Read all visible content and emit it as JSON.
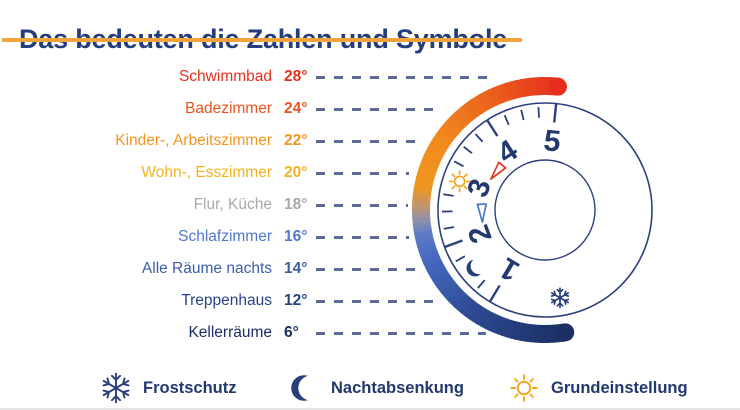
{
  "title": "Das bedeuten die Zahlen und Symbole",
  "theme": {
    "navy_text": "#22386e",
    "title_navy": "#243e7d",
    "underline_orange": "#f2a33a",
    "dash_color": "#5b6b94",
    "dial_stroke": "#2b3f7d",
    "sun_orange": "#f7a31f",
    "pointer_red": "#e8331d",
    "pointer_blue": "#4b76ca"
  },
  "rows": [
    {
      "label": "Schwimmbad",
      "temp": "28°",
      "color": "#e6301d"
    },
    {
      "label": "Badezimmer",
      "temp": "24°",
      "color": "#ea5420"
    },
    {
      "label": "Kinder-, Arbeitszimmer",
      "temp": "22°",
      "color": "#f7941e"
    },
    {
      "label": "Wohn-, Esszimmer",
      "temp": "20°",
      "color": "#f3b31c"
    },
    {
      "label": "Flur, Küche",
      "temp": "18°",
      "color": "#a6a8ab"
    },
    {
      "label": "Schlafzimmer",
      "temp": "16°",
      "color": "#4f77c8"
    },
    {
      "label": "Alle Räume nachts",
      "temp": "14°",
      "color": "#3a5dac"
    },
    {
      "label": "Treppenhaus",
      "temp": "12°",
      "color": "#29408a"
    },
    {
      "label": "Kellerräume",
      "temp": "6°",
      "color": "#1b2c62"
    }
  ],
  "dial": {
    "numbers": [
      {
        "label": "5",
        "deg": 84
      },
      {
        "label": "4",
        "deg": 122.75
      },
      {
        "label": "3",
        "deg": 161.5
      },
      {
        "label": "2",
        "deg": 200.25
      },
      {
        "label": "1",
        "deg": 239
      }
    ],
    "symbols": [
      {
        "name": "sun",
        "deg": 161.5,
        "r": 90
      },
      {
        "name": "moon",
        "deg": 219.6,
        "r": 91
      },
      {
        "name": "snowflake",
        "deg": 279.7,
        "r": 89
      }
    ],
    "pointers": [
      {
        "name": "red-pointer",
        "color": "#e8331d",
        "deg": 141,
        "r": 61.5
      },
      {
        "name": "blue-pointer",
        "color": "#4b76ca",
        "deg": 182,
        "r": 63
      }
    ],
    "arc_stops": [
      [
        0.0,
        "#e62e1f"
      ],
      [
        0.14,
        "#e95a1d"
      ],
      [
        0.32,
        "#f28a1e"
      ],
      [
        0.44,
        "#ef951f"
      ],
      [
        0.485,
        "#c09470"
      ],
      [
        0.515,
        "#8f93a6"
      ],
      [
        0.55,
        "#5d7ac6"
      ],
      [
        0.62,
        "#4467be"
      ],
      [
        0.78,
        "#2d4890"
      ],
      [
        1.0,
        "#1b2f63"
      ]
    ]
  },
  "legend": [
    {
      "icon": "snowflake",
      "label": "Frostschutz"
    },
    {
      "icon": "moon",
      "label": "Nachtabsenkung"
    },
    {
      "icon": "sun",
      "label": "Grundeinstellung"
    }
  ]
}
